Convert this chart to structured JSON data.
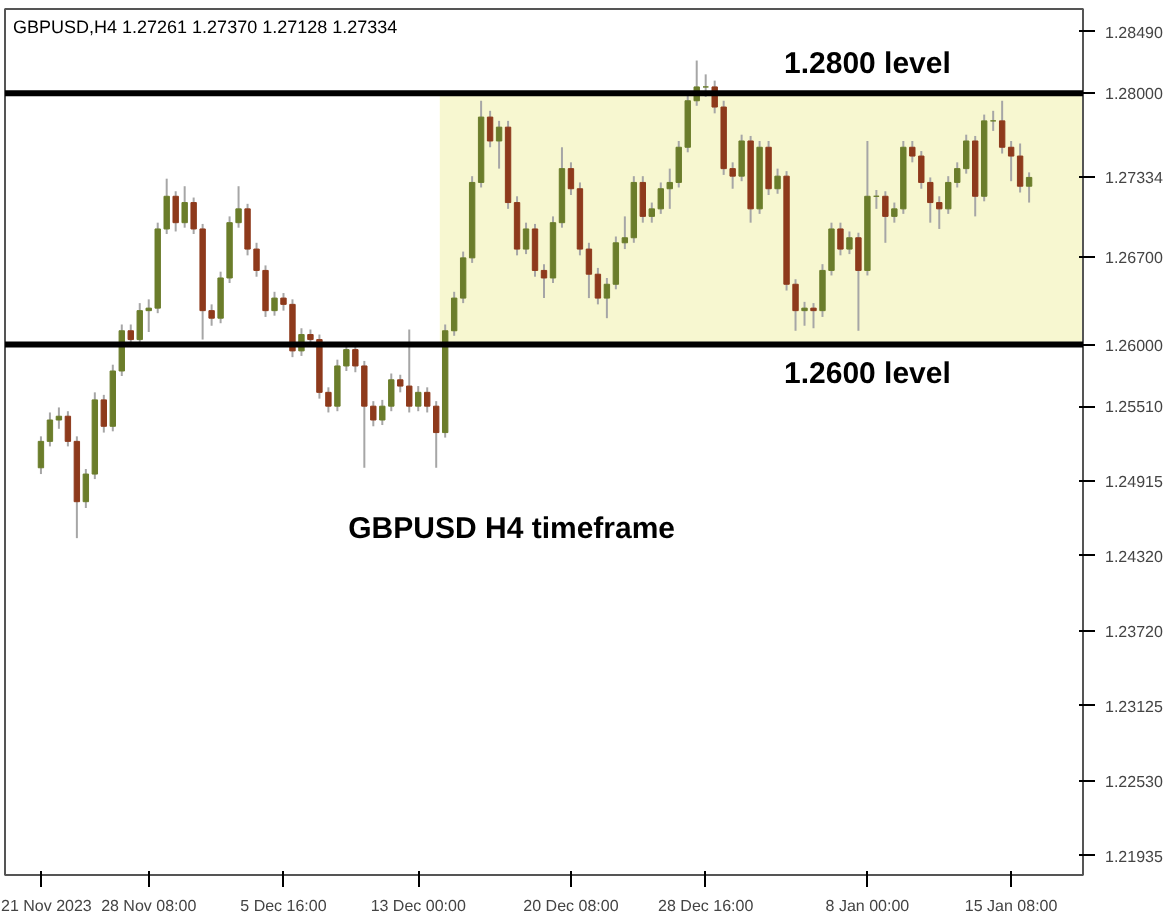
{
  "chart_data": {
    "type": "candlestick",
    "title": "GBPUSD,H4  1.27261 1.27370 1.27128 1.27334",
    "annotations": [
      "GBPUSD H4 timeframe"
    ],
    "categories": [
      "21 Nov 2023",
      null,
      null,
      null,
      null,
      null,
      null,
      null,
      null,
      null,
      null,
      null,
      "28 Nov 08:00",
      null,
      null,
      null,
      null,
      null,
      null,
      null,
      null,
      null,
      null,
      null,
      null,
      null,
      null,
      "5 Dec 16:00",
      null,
      null,
      null,
      null,
      null,
      null,
      null,
      null,
      null,
      null,
      null,
      null,
      null,
      null,
      "13 Dec 00:00",
      null,
      null,
      null,
      null,
      null,
      null,
      null,
      null,
      null,
      null,
      null,
      null,
      null,
      null,
      null,
      null,
      "20 Dec 08:00",
      null,
      null,
      null,
      null,
      null,
      null,
      null,
      null,
      null,
      null,
      null,
      null,
      null,
      null,
      "28 Dec 16:00",
      null,
      null,
      null,
      null,
      null,
      null,
      null,
      null,
      null,
      null,
      null,
      null,
      null,
      null,
      null,
      null,
      null,
      "8 Jan 00:00",
      null,
      null,
      null,
      null,
      null,
      null,
      null,
      null,
      null,
      null,
      null,
      null,
      null,
      null,
      null,
      "15 Jan 08:00",
      null,
      null
    ],
    "ohlc": [
      [
        1.2502,
        1.2527,
        1.2497,
        1.2523
      ],
      [
        1.2523,
        1.2546,
        1.2519,
        1.254
      ],
      [
        1.254,
        1.255,
        1.2533,
        1.2543
      ],
      [
        1.2543,
        1.2547,
        1.2519,
        1.2523
      ],
      [
        1.2523,
        1.2527,
        1.2446,
        1.2475
      ],
      [
        1.2475,
        1.2501,
        1.247,
        1.2497
      ],
      [
        1.2497,
        1.2562,
        1.2493,
        1.2556
      ],
      [
        1.2556,
        1.256,
        1.253,
        1.2535
      ],
      [
        1.2535,
        1.2584,
        1.2531,
        1.2579
      ],
      [
        1.2579,
        1.2616,
        1.2575,
        1.2611
      ],
      [
        1.2611,
        1.2616,
        1.2598,
        1.2604
      ],
      [
        1.2604,
        1.2633,
        1.26,
        1.2627
      ],
      [
        1.2627,
        1.2636,
        1.261,
        1.2629
      ],
      [
        1.2629,
        1.2697,
        1.2625,
        1.2692
      ],
      [
        1.2692,
        1.2732,
        1.2688,
        1.2718
      ],
      [
        1.2718,
        1.2722,
        1.269,
        1.2697
      ],
      [
        1.2697,
        1.2726,
        1.2693,
        1.2713
      ],
      [
        1.2713,
        1.2717,
        1.2688,
        1.2692
      ],
      [
        1.2692,
        1.2696,
        1.2604,
        1.2627
      ],
      [
        1.2627,
        1.2632,
        1.2615,
        1.2621
      ],
      [
        1.2621,
        1.2658,
        1.2617,
        1.2653
      ],
      [
        1.2653,
        1.2702,
        1.2649,
        1.2697
      ],
      [
        1.2697,
        1.2726,
        1.2693,
        1.2708
      ],
      [
        1.2708,
        1.2712,
        1.2671,
        1.2676
      ],
      [
        1.2676,
        1.2681,
        1.2654,
        1.2659
      ],
      [
        1.2659,
        1.2663,
        1.2622,
        1.2627
      ],
      [
        1.2627,
        1.2642,
        1.2623,
        1.2637
      ],
      [
        1.2637,
        1.2641,
        1.2627,
        1.2632
      ],
      [
        1.2632,
        1.2636,
        1.259,
        1.2595
      ],
      [
        1.2595,
        1.2613,
        1.2591,
        1.2608
      ],
      [
        1.2608,
        1.2612,
        1.2599,
        1.2604
      ],
      [
        1.2604,
        1.2608,
        1.2557,
        1.2562
      ],
      [
        1.2562,
        1.2566,
        1.2546,
        1.2551
      ],
      [
        1.2551,
        1.2588,
        1.2547,
        1.2583
      ],
      [
        1.2583,
        1.2601,
        1.2579,
        1.2596
      ],
      [
        1.2596,
        1.26,
        1.2578,
        1.2583
      ],
      [
        1.2583,
        1.2587,
        1.2502,
        1.2551
      ],
      [
        1.2551,
        1.2555,
        1.2535,
        1.254
      ],
      [
        1.254,
        1.2556,
        1.2536,
        1.2551
      ],
      [
        1.2551,
        1.2577,
        1.2547,
        1.2572
      ],
      [
        1.2572,
        1.2576,
        1.2562,
        1.2567
      ],
      [
        1.2567,
        1.2612,
        1.2546,
        1.2551
      ],
      [
        1.2551,
        1.2567,
        1.2547,
        1.2562
      ],
      [
        1.2562,
        1.2566,
        1.2546,
        1.2551
      ],
      [
        1.2551,
        1.2555,
        1.2502,
        1.253
      ],
      [
        1.253,
        1.2616,
        1.2526,
        1.2611
      ],
      [
        1.2611,
        1.2642,
        1.2607,
        1.2637
      ],
      [
        1.2637,
        1.2674,
        1.2633,
        1.2669
      ],
      [
        1.2669,
        1.2734,
        1.2665,
        1.2729
      ],
      [
        1.2729,
        1.2794,
        1.2725,
        1.2781
      ],
      [
        1.2781,
        1.2786,
        1.2757,
        1.2762
      ],
      [
        1.2762,
        1.2778,
        1.274,
        1.2773
      ],
      [
        1.2773,
        1.2778,
        1.2708,
        1.2713
      ],
      [
        1.2713,
        1.2718,
        1.2671,
        1.2676
      ],
      [
        1.2676,
        1.2697,
        1.2672,
        1.2692
      ],
      [
        1.2692,
        1.2696,
        1.2654,
        1.2659
      ],
      [
        1.2659,
        1.2664,
        1.2637,
        1.2653
      ],
      [
        1.2653,
        1.2702,
        1.2649,
        1.2697
      ],
      [
        1.2697,
        1.2757,
        1.2693,
        1.274
      ],
      [
        1.274,
        1.2745,
        1.2719,
        1.2724
      ],
      [
        1.2724,
        1.2729,
        1.2671,
        1.2676
      ],
      [
        1.2676,
        1.2681,
        1.2637,
        1.2656
      ],
      [
        1.2656,
        1.2661,
        1.2632,
        1.2637
      ],
      [
        1.2637,
        1.2653,
        1.2621,
        1.2648
      ],
      [
        1.2648,
        1.2686,
        1.2644,
        1.2681
      ],
      [
        1.2681,
        1.2702,
        1.2676,
        1.2685
      ],
      [
        1.2685,
        1.2734,
        1.2681,
        1.2729
      ],
      [
        1.2729,
        1.2734,
        1.2697,
        1.2702
      ],
      [
        1.2702,
        1.2713,
        1.2697,
        1.2708
      ],
      [
        1.2708,
        1.2729,
        1.2704,
        1.2724
      ],
      [
        1.2724,
        1.274,
        1.2708,
        1.2729
      ],
      [
        1.2729,
        1.2762,
        1.2725,
        1.2757
      ],
      [
        1.2757,
        1.2799,
        1.2753,
        1.2794
      ],
      [
        1.2794,
        1.2826,
        1.279,
        1.2805
      ],
      [
        1.2805,
        1.2815,
        1.2797,
        1.2805
      ],
      [
        1.2805,
        1.281,
        1.2784,
        1.2789
      ],
      [
        1.2789,
        1.2794,
        1.2735,
        1.274
      ],
      [
        1.274,
        1.2745,
        1.2724,
        1.2734
      ],
      [
        1.2734,
        1.2767,
        1.273,
        1.2762
      ],
      [
        1.2762,
        1.2766,
        1.2697,
        1.2708
      ],
      [
        1.2708,
        1.2762,
        1.2704,
        1.2757
      ],
      [
        1.2757,
        1.2762,
        1.2719,
        1.2724
      ],
      [
        1.2724,
        1.274,
        1.272,
        1.2734
      ],
      [
        1.2734,
        1.2738,
        1.2643,
        1.2648
      ],
      [
        1.2648,
        1.2652,
        1.2611,
        1.2627
      ],
      [
        1.2627,
        1.2634,
        1.2615,
        1.2629
      ],
      [
        1.2629,
        1.2633,
        1.2613,
        1.2627
      ],
      [
        1.2627,
        1.2664,
        1.2622,
        1.2659
      ],
      [
        1.2659,
        1.2697,
        1.2655,
        1.2692
      ],
      [
        1.2692,
        1.2697,
        1.2671,
        1.2676
      ],
      [
        1.2676,
        1.269,
        1.2672,
        1.2685
      ],
      [
        1.2685,
        1.2689,
        1.2611,
        1.2659
      ],
      [
        1.2659,
        1.2762,
        1.2655,
        1.2718
      ],
      [
        1.2718,
        1.2723,
        1.2708,
        1.2718
      ],
      [
        1.2718,
        1.2722,
        1.2681,
        1.2702
      ],
      [
        1.2702,
        1.2713,
        1.2697,
        1.2708
      ],
      [
        1.2708,
        1.2762,
        1.2704,
        1.2757
      ],
      [
        1.2757,
        1.2762,
        1.2745,
        1.275
      ],
      [
        1.275,
        1.2754,
        1.2724,
        1.2729
      ],
      [
        1.2729,
        1.2733,
        1.2697,
        1.2713
      ],
      [
        1.2713,
        1.2718,
        1.2692,
        1.2708
      ],
      [
        1.2708,
        1.2734,
        1.2704,
        1.2729
      ],
      [
        1.2729,
        1.2745,
        1.2725,
        1.274
      ],
      [
        1.274,
        1.2767,
        1.2736,
        1.2762
      ],
      [
        1.2762,
        1.2766,
        1.2702,
        1.2718
      ],
      [
        1.2718,
        1.2783,
        1.2714,
        1.2778
      ],
      [
        1.2778,
        1.2786,
        1.277,
        1.2778
      ],
      [
        1.2778,
        1.2794,
        1.2752,
        1.2757
      ],
      [
        1.2757,
        1.2762,
        1.273,
        1.275
      ],
      [
        1.275,
        1.276,
        1.2721,
        1.2726
      ],
      [
        1.2726,
        1.2737,
        1.2713,
        1.2733
      ]
    ],
    "ylim": [
      1.2178,
      1.2867
    ],
    "yticks": [
      {
        "value": 1.2849,
        "label": "1.28490"
      },
      {
        "value": 1.28,
        "label": "1.28000"
      },
      {
        "value": 1.27334,
        "label": "1.27334"
      },
      {
        "value": 1.267,
        "label": "1.26700"
      },
      {
        "value": 1.26,
        "label": "1.26000"
      },
      {
        "value": 1.2551,
        "label": "1.25510"
      },
      {
        "value": 1.24915,
        "label": "1.24915"
      },
      {
        "value": 1.2432,
        "label": "1.24320"
      },
      {
        "value": 1.2372,
        "label": "1.23720"
      },
      {
        "value": 1.23125,
        "label": "1.23125"
      },
      {
        "value": 1.2253,
        "label": "1.22530"
      },
      {
        "value": 1.21935,
        "label": "1.21935"
      }
    ],
    "ref_lines": [
      {
        "axis": "y",
        "value": 1.28,
        "label": "1.2800 level",
        "color": "#000000"
      },
      {
        "axis": "y",
        "value": 1.26,
        "label": "1.2600 level",
        "color": "#000000"
      }
    ],
    "bands": [
      {
        "axis": "y",
        "from": 1.26,
        "to": 1.28,
        "color": "#f7f7d0"
      }
    ],
    "grid": false
  }
}
